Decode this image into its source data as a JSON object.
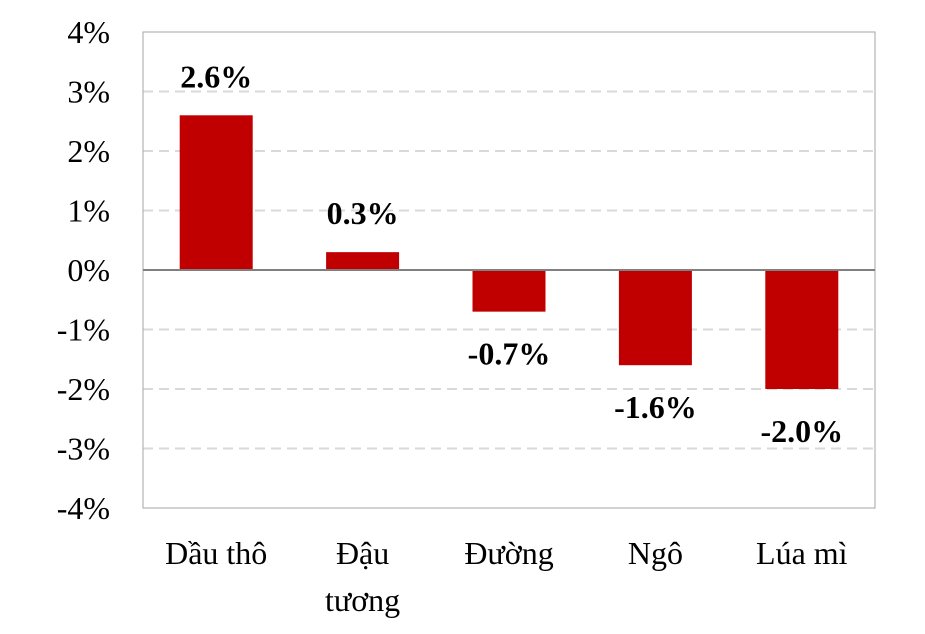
{
  "chart_data": {
    "type": "bar",
    "categories": [
      [
        "Dầu thô"
      ],
      [
        "Đậu",
        "tương"
      ],
      [
        "Đường"
      ],
      [
        "Ngô"
      ],
      [
        "Lúa mì"
      ]
    ],
    "values": [
      2.6,
      0.3,
      -0.7,
      -1.6,
      -2.0
    ],
    "data_labels": [
      "2.6%",
      "0.3%",
      "-0.7%",
      "-1.6%",
      "-2.0%"
    ],
    "y_ticks": [
      4,
      3,
      2,
      1,
      0,
      -1,
      -2,
      -3,
      -4
    ],
    "y_tick_labels": [
      "4%",
      "3%",
      "2%",
      "1%",
      "0%",
      "-1%",
      "-2%",
      "-3%",
      "-4%"
    ],
    "ylim": [
      -4,
      4
    ],
    "grid": true,
    "legend": "none",
    "title": "",
    "xlabel": "",
    "ylabel": "",
    "colors": {
      "bar": "#C00000",
      "grid": "#D9D9D9",
      "zero_line": "#808080",
      "frame": "#A6A6A6"
    }
  }
}
